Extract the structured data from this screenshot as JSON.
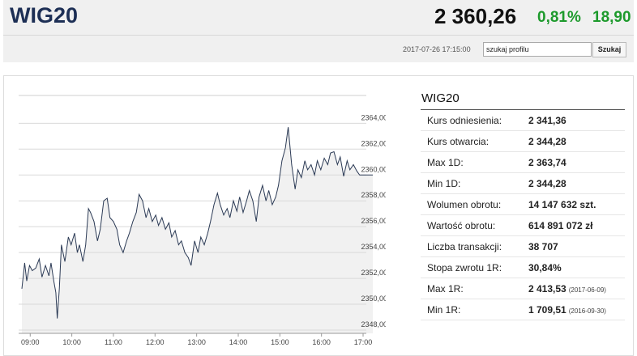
{
  "header": {
    "title": "WIG20",
    "price": "2 360,26",
    "change_pct": "0,81%",
    "change_abs": "18,90",
    "timestamp": "2017-07-26 17:15:00",
    "search_value": "szukaj profilu",
    "search_button": "Szukaj"
  },
  "chart_data": {
    "type": "line",
    "color": "#2b3a55",
    "area_color": "#f1f1f1",
    "grid": true,
    "x": [
      528,
      532,
      535,
      539,
      543,
      548,
      553,
      557,
      562,
      567,
      570,
      574,
      577,
      579,
      582,
      585,
      590,
      595,
      599,
      604,
      608,
      611,
      616,
      620,
      624,
      627,
      632,
      637,
      641,
      646,
      651,
      655,
      660,
      665,
      669,
      674,
      679,
      683,
      688,
      693,
      697,
      702,
      707,
      711,
      716,
      721,
      725,
      730,
      735,
      740,
      744,
      749,
      754,
      758,
      763,
      768,
      772,
      777,
      782,
      786,
      791,
      796,
      800,
      805,
      810,
      814,
      819,
      824,
      828,
      833,
      838,
      842,
      847,
      852,
      856,
      861,
      866,
      870,
      875,
      880,
      884,
      889,
      894,
      898,
      903,
      908,
      912,
      917,
      922,
      926,
      931,
      936,
      940,
      945,
      950,
      954,
      959,
      964,
      969,
      973,
      978,
      983,
      987,
      992,
      997,
      1001,
      1006,
      1011,
      1015,
      1025,
      1034
    ],
    "series": [
      {
        "values": [
          2351.2,
          2353.2,
          2351.8,
          2353.0,
          2352.6,
          2352.8,
          2353.5,
          2352.1,
          2353.0,
          2352.2,
          2353.2,
          2351.8,
          2350.9,
          2348.9,
          2351.2,
          2354.6,
          2353.3,
          2355.2,
          2354.6,
          2355.5,
          2354.0,
          2354.6,
          2353.3,
          2354.6,
          2357.4,
          2357.1,
          2356.4,
          2354.9,
          2355.8,
          2358.0,
          2358.2,
          2356.7,
          2356.4,
          2355.8,
          2354.6,
          2354.0,
          2354.9,
          2355.5,
          2356.4,
          2357.1,
          2358.5,
          2358.0,
          2356.7,
          2357.4,
          2356.4,
          2356.9,
          2356.1,
          2356.7,
          2355.8,
          2356.3,
          2355.2,
          2355.7,
          2354.6,
          2354.9,
          2354.0,
          2353.6,
          2353.0,
          2354.9,
          2354.0,
          2355.2,
          2354.6,
          2355.5,
          2356.4,
          2357.7,
          2358.6,
          2357.7,
          2356.9,
          2357.4,
          2356.7,
          2358.0,
          2357.2,
          2358.3,
          2357.1,
          2358.0,
          2358.8,
          2358.0,
          2356.4,
          2358.3,
          2359.2,
          2358.0,
          2358.8,
          2357.7,
          2358.3,
          2359.2,
          2361.1,
          2362.1,
          2363.7,
          2360.8,
          2358.9,
          2360.4,
          2359.8,
          2361.1,
          2360.4,
          2360.8,
          2360.0,
          2361.1,
          2360.4,
          2361.3,
          2360.8,
          2361.7,
          2361.8,
          2360.8,
          2361.4,
          2359.9,
          2361.1,
          2360.4,
          2360.8,
          2360.3,
          2360.0,
          2360.0,
          2360.0
        ]
      }
    ],
    "xlim": [
      528,
      1034
    ],
    "xticks": [
      {
        "value": 540,
        "label": "09:00"
      },
      {
        "value": 600,
        "label": "10:00"
      },
      {
        "value": 660,
        "label": "11:00"
      },
      {
        "value": 720,
        "label": "12:00"
      },
      {
        "value": 780,
        "label": "13:00"
      },
      {
        "value": 840,
        "label": "14:00"
      },
      {
        "value": 900,
        "label": "15:00"
      },
      {
        "value": 960,
        "label": "16:00"
      },
      {
        "value": 1020,
        "label": "17:00"
      }
    ],
    "ylim": [
      2347.75,
      2366.15
    ],
    "yticks": [
      {
        "value": 2348,
        "label": "2348,00"
      },
      {
        "value": 2350,
        "label": "2350,00"
      },
      {
        "value": 2352,
        "label": "2352,00"
      },
      {
        "value": 2354,
        "label": "2354,00"
      },
      {
        "value": 2356,
        "label": "2356,00"
      },
      {
        "value": 2358,
        "label": "2358,00"
      },
      {
        "value": 2360,
        "label": "2360,00"
      },
      {
        "value": 2362,
        "label": "2362,00"
      },
      {
        "value": 2364,
        "label": "2364,00"
      }
    ]
  },
  "table": {
    "title": "WIG20",
    "rows": [
      {
        "label": "Kurs odniesienia:",
        "value": "2 341,36"
      },
      {
        "label": "Kurs otwarcia:",
        "value": "2 344,28"
      },
      {
        "label": "Max 1D:",
        "value": "2 363,74"
      },
      {
        "label": "Min 1D:",
        "value": "2 344,28"
      },
      {
        "label": "Wolumen obrotu:",
        "value": "14 147 632 szt."
      },
      {
        "label": "Wartość obrotu:",
        "value": "614 891 072 zł"
      },
      {
        "label": "Liczba transakcji:",
        "value": "38 707"
      },
      {
        "label": "Stopa zwrotu 1R:",
        "value": "30,84%"
      },
      {
        "label": "Max 1R:",
        "value": "2 413,53",
        "note": "(2017-06-09)"
      },
      {
        "label": "Min 1R:",
        "value": "1 709,51",
        "note": "(2016-09-30)"
      }
    ]
  }
}
